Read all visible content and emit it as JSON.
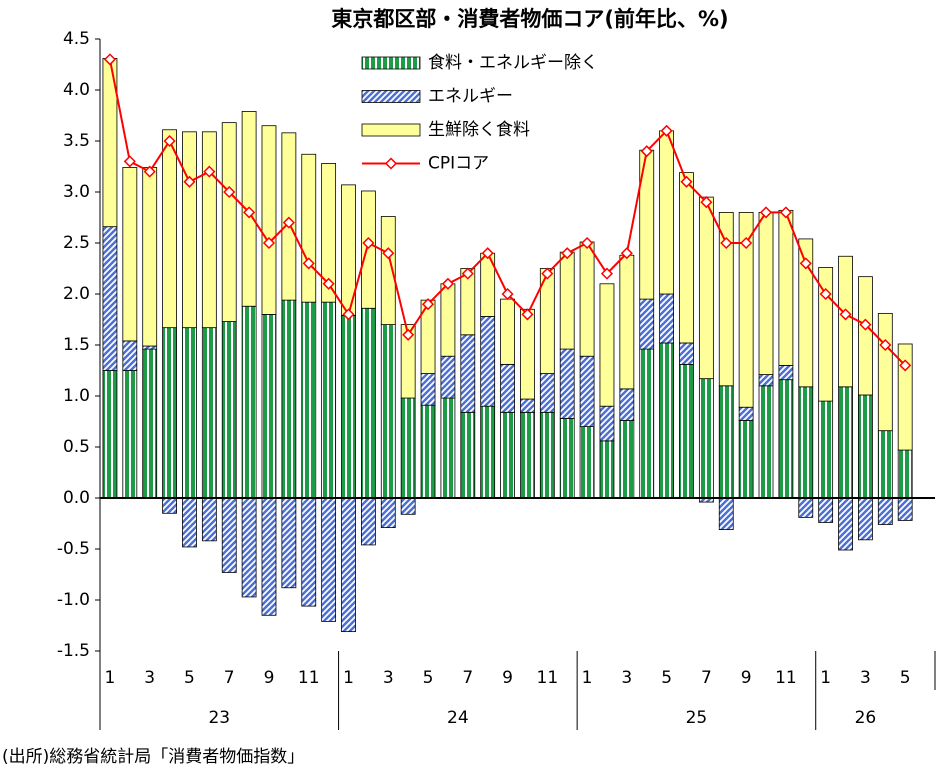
{
  "chart_data": {
    "type": "stacked-bar-line",
    "title": "東京都区部・消費者物価コア(前年比、%)",
    "source": "(出所)総務省統計局「消費者物価指数」",
    "categories": [
      "1",
      null,
      "3",
      null,
      "5",
      null,
      "7",
      null,
      "9",
      null,
      "11",
      null,
      "1",
      null,
      "3",
      null,
      "5",
      null,
      "7",
      null,
      "9",
      null,
      "11",
      null,
      "1",
      null,
      "3",
      null,
      "5",
      null,
      "7",
      null,
      "9",
      null,
      "11",
      null,
      "1",
      null,
      "3",
      null,
      "5"
    ],
    "years": [
      "23",
      "24",
      "25",
      "26"
    ],
    "ylim": [
      -1.5,
      4.5
    ],
    "yticks": [
      4.5,
      {
        "value": 4.0,
        "label": "4.0"
      },
      3.5,
      {
        "value": 3.0,
        "label": "3.0"
      },
      2.5,
      {
        "value": 2.0,
        "label": "2.0"
      },
      1.5,
      {
        "value": 1.0,
        "label": "1.0"
      },
      0.5,
      {
        "value": 0.0,
        "label": "0.0"
      },
      -0.5,
      {
        "value": -1.0,
        "label": "-1.0"
      },
      -1.5
    ],
    "legend": "top",
    "series": [
      {
        "name": "食料・エネルギー除く",
        "kind": "bar",
        "color": "#1e9b46",
        "values": [
          1.25,
          1.25,
          1.46,
          1.67,
          1.67,
          1.67,
          1.73,
          1.88,
          1.8,
          1.94,
          1.92,
          1.92,
          1.79,
          1.86,
          1.7,
          0.98,
          0.91,
          0.98,
          0.84,
          0.9,
          0.84,
          0.84,
          0.84,
          0.78,
          0.7,
          0.56,
          0.76,
          1.46,
          1.52,
          1.31,
          1.17,
          1.1,
          0.76,
          1.1,
          1.16,
          1.09,
          0.95,
          1.09,
          1.01,
          0.66,
          0.47
        ]
      },
      {
        "name": "エネルギー",
        "kind": "bar",
        "color": "#4a6fd8",
        "values": [
          1.41,
          0.29,
          0.03,
          -0.15,
          -0.48,
          -0.42,
          -0.73,
          -0.97,
          -1.15,
          -0.88,
          -1.06,
          -1.21,
          -1.31,
          -0.46,
          -0.29,
          -0.16,
          0.31,
          0.41,
          0.76,
          0.88,
          0.47,
          0.13,
          0.38,
          0.68,
          0.69,
          0.34,
          0.31,
          0.49,
          0.48,
          0.21,
          -0.04,
          -0.31,
          0.13,
          0.11,
          0.14,
          -0.19,
          -0.24,
          -0.51,
          -0.41,
          -0.26,
          -0.22
        ]
      },
      {
        "name": "生鮮除く食料",
        "kind": "bar",
        "color": "#ffff99",
        "values": [
          1.65,
          1.7,
          1.75,
          1.94,
          1.92,
          1.92,
          1.95,
          1.91,
          1.85,
          1.64,
          1.45,
          1.36,
          1.28,
          1.15,
          1.06,
          0.72,
          0.72,
          0.71,
          0.65,
          0.62,
          0.64,
          0.88,
          1.03,
          0.95,
          1.12,
          1.2,
          1.31,
          1.46,
          1.6,
          1.67,
          1.78,
          1.7,
          1.91,
          1.59,
          1.52,
          1.45,
          1.31,
          1.28,
          1.16,
          1.15,
          1.04
        ]
      },
      {
        "name": "CPIコア",
        "kind": "line",
        "color": "#ff0000",
        "values": [
          4.3,
          3.3,
          3.2,
          3.5,
          3.1,
          3.2,
          3.0,
          2.8,
          2.5,
          2.7,
          2.3,
          2.1,
          1.8,
          2.5,
          2.4,
          1.6,
          1.9,
          2.1,
          2.2,
          2.4,
          2.0,
          1.8,
          2.2,
          2.4,
          2.5,
          2.2,
          2.4,
          3.4,
          3.6,
          3.1,
          2.9,
          2.5,
          2.5,
          2.8,
          2.8,
          2.3,
          2.0,
          1.8,
          1.7,
          1.5,
          1.3
        ]
      }
    ]
  }
}
